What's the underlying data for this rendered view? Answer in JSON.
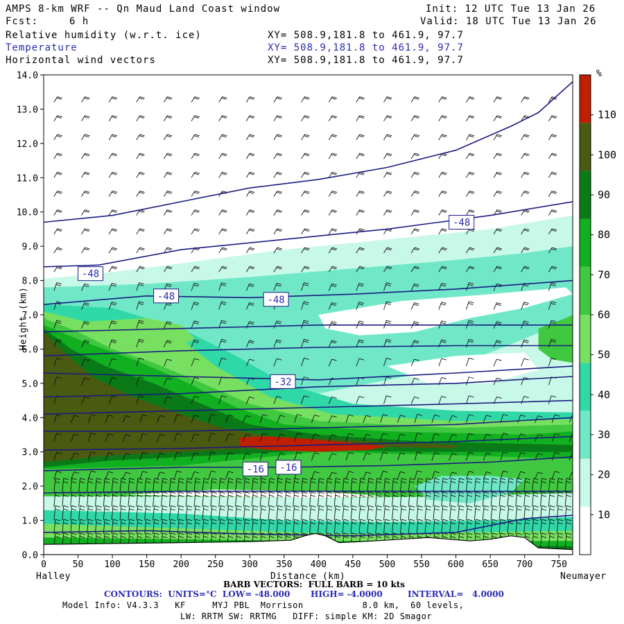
{
  "header": {
    "title": "AMPS 8-km WRF -- Qn Maud Land Coast window",
    "fcst_label": "Fcst:",
    "fcst_value": "6 h",
    "init": "Init: 12 UTC Tue 13 Jan 26",
    "valid": "Valid: 18 UTC Tue 13 Jan 26",
    "field1": "Relative humidity (w.r.t. ice)",
    "field2": "Temperature",
    "field3": "Horizontal wind vectors",
    "xy": "XY= 508.9,181.8 to 461.9, 97.7"
  },
  "colors": {
    "temperature_line": "#1a1a80",
    "temperature_label": "#2a2ab0"
  },
  "chart_data": {
    "type": "heatmap",
    "ylabel": "Height (km)",
    "xlabel": "Distance (km)",
    "xlim": [
      0,
      770
    ],
    "ylim": [
      0,
      14
    ],
    "x_ticks": [
      "0",
      "50",
      "100",
      "150",
      "200",
      "250",
      "300",
      "350",
      "400",
      "450",
      "500",
      "550",
      "600",
      "650",
      "700",
      "750"
    ],
    "y_ticks": [
      "0.0",
      "1.0",
      "2.0",
      "3.0",
      "4.0",
      "5.0",
      "6.0",
      "7.0",
      "8.0",
      "9.0",
      "10.0",
      "11.0",
      "12.0",
      "13.0",
      "14.0"
    ],
    "left_end_label": "Halley",
    "right_end_label": "Neumayer",
    "colorbar": {
      "unit": "%",
      "ticks": [
        "10",
        "20",
        "30",
        "40",
        "50",
        "60",
        "70",
        "80",
        "90",
        "100",
        "110"
      ],
      "bands": [
        {
          "from": 0,
          "to": 30,
          "color": "#ffffff"
        },
        {
          "from": 30,
          "to": 40,
          "color": "#c8f8e8"
        },
        {
          "from": 40,
          "to": 50,
          "color": "#70e8c8"
        },
        {
          "from": 50,
          "to": 60,
          "color": "#30d8a8"
        },
        {
          "from": 60,
          "to": 70,
          "color": "#78e060"
        },
        {
          "from": 70,
          "to": 80,
          "color": "#40c840"
        },
        {
          "from": 80,
          "to": 90,
          "color": "#10b020"
        },
        {
          "from": 90,
          "to": 100,
          "color": "#0a7a18"
        },
        {
          "from": 100,
          "to": 110,
          "color": "#4a5a10"
        },
        {
          "from": 110,
          "to": 120,
          "color": "#c02000"
        }
      ]
    },
    "temperature_contour_labels": [
      {
        "text": "-48",
        "x": 590,
        "y": 9.7
      },
      {
        "text": "-48",
        "x": 50,
        "y": 8.2
      },
      {
        "text": "-48",
        "x": 160,
        "y": 7.55
      },
      {
        "text": "-48",
        "x": 320,
        "y": 7.45
      },
      {
        "text": "-32",
        "x": 330,
        "y": 5.05
      },
      {
        "text": "-16",
        "x": 290,
        "y": 2.5
      },
      {
        "text": "-16",
        "x": 338,
        "y": 2.55
      }
    ],
    "contours": {
      "units": "°C",
      "low": "-48.000",
      "high": "-4.0000",
      "interval": "4.0000"
    }
  },
  "footer": {
    "barb": "BARB VECTORS:  FULL BARB = 10 kts",
    "contours_prefix": "CONTOURS:  UNITS=°C  LOW= -48.000",
    "contours_high": "HIGH= -4.0000",
    "contours_interval": "INTERVAL=   4.0000",
    "model_line1": "Model Info: V4.3.3   KF     MYJ PBL  Morrison           8.0 km,  60 levels,",
    "model_line2": "LW: RRTM SW: RRTMG   DIFF: simple KM: 2D Smagor"
  }
}
